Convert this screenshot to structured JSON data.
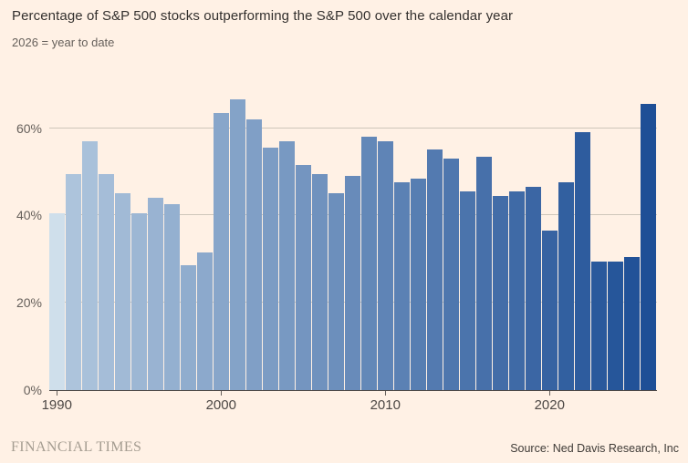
{
  "header": {
    "title": "Percentage of S&P 500 stocks outperforming the S&P 500 over the calendar year",
    "subtitle": "2026 = year to date"
  },
  "footer": {
    "brand": "FINANCIAL TIMES",
    "source": "Source: Ned Davis Research, Inc"
  },
  "colors": {
    "background": "#fff1e5",
    "bar_first": "#cfdfeb",
    "bar_ramp_start": "#adc4dc",
    "bar_ramp_end": "#1e4f96",
    "gridline": "#cfc6ba",
    "axis_line": "#4d4845",
    "text_dark": "#33302e",
    "text_muted": "#66605b"
  },
  "chart_data": {
    "type": "bar",
    "title": "Percentage of S&P 500 stocks outperforming the S&P 500 over the calendar year",
    "note": "2026 = year to date",
    "categories": [
      1990,
      1991,
      1992,
      1993,
      1994,
      1995,
      1996,
      1997,
      1998,
      1999,
      2000,
      2001,
      2002,
      2003,
      2004,
      2005,
      2006,
      2007,
      2008,
      2009,
      2010,
      2011,
      2012,
      2013,
      2014,
      2015,
      2016,
      2017,
      2018,
      2019,
      2020,
      2021,
      2022,
      2023,
      2024,
      2025,
      2026
    ],
    "values": [
      40.5,
      49.5,
      57,
      49.5,
      45,
      40.5,
      44,
      42.5,
      28.5,
      31.5,
      63.5,
      66.5,
      62,
      55.5,
      57,
      51.5,
      49.5,
      45,
      49,
      58,
      57,
      47.5,
      48.5,
      55,
      53,
      45.5,
      53.5,
      44.5,
      45.5,
      46.5,
      36.5,
      47.5,
      59,
      29.5,
      29.5,
      30.5,
      65.5
    ],
    "unit": "%",
    "ylim": [
      0,
      69.5
    ],
    "y_ticks": [
      0,
      20,
      40,
      60
    ],
    "y_tick_labels": [
      "0%",
      "20%",
      "40%",
      "60%"
    ],
    "x_ticks": [
      1990,
      2000,
      2010,
      2020
    ],
    "x_tick_labels": [
      "1990",
      "2000",
      "2010",
      "2020"
    ],
    "grid": true,
    "legend": false,
    "color_scheme": "light-to-dark-blue gradient, oldest year lightest"
  }
}
